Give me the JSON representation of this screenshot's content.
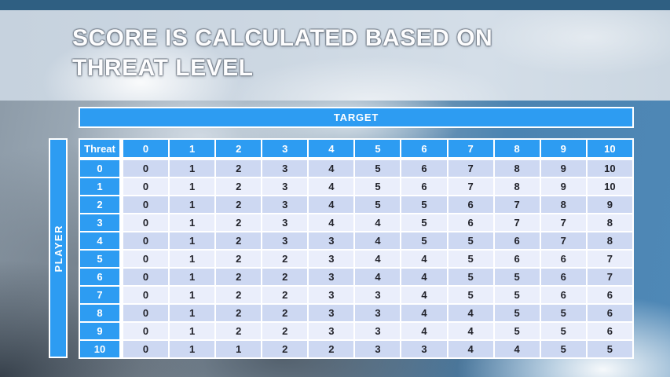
{
  "slide": {
    "title_line1": "SCORE IS CALCULATED BASED ON",
    "title_line2": "THREAT LEVEL"
  },
  "table": {
    "target_label": "TARGET",
    "player_label": "PLAYER",
    "corner_label": "Threat",
    "column_headers": [
      "0",
      "1",
      "2",
      "3",
      "4",
      "5",
      "6",
      "7",
      "8",
      "9",
      "10"
    ],
    "rows": [
      {
        "header": "0",
        "values": [
          0,
          1,
          2,
          3,
          4,
          5,
          6,
          7,
          8,
          9,
          10
        ]
      },
      {
        "header": "1",
        "values": [
          0,
          1,
          2,
          3,
          4,
          5,
          6,
          7,
          8,
          9,
          10
        ]
      },
      {
        "header": "2",
        "values": [
          0,
          1,
          2,
          3,
          4,
          5,
          5,
          6,
          7,
          8,
          9
        ]
      },
      {
        "header": "3",
        "values": [
          0,
          1,
          2,
          3,
          4,
          4,
          5,
          6,
          7,
          7,
          8
        ]
      },
      {
        "header": "4",
        "values": [
          0,
          1,
          2,
          3,
          3,
          4,
          5,
          5,
          6,
          7,
          8
        ]
      },
      {
        "header": "5",
        "values": [
          0,
          1,
          2,
          2,
          3,
          4,
          4,
          5,
          6,
          6,
          7
        ]
      },
      {
        "header": "6",
        "values": [
          0,
          1,
          2,
          2,
          3,
          4,
          4,
          5,
          5,
          6,
          7
        ]
      },
      {
        "header": "7",
        "values": [
          0,
          1,
          2,
          2,
          3,
          3,
          4,
          5,
          5,
          6,
          6
        ]
      },
      {
        "header": "8",
        "values": [
          0,
          1,
          2,
          2,
          3,
          3,
          4,
          4,
          5,
          5,
          6
        ]
      },
      {
        "header": "9",
        "values": [
          0,
          1,
          2,
          2,
          3,
          3,
          4,
          4,
          5,
          5,
          6
        ]
      },
      {
        "header": "10",
        "values": [
          0,
          1,
          1,
          2,
          2,
          3,
          3,
          4,
          4,
          5,
          5
        ]
      }
    ]
  },
  "colors": {
    "header_blue": "#2d9cf2",
    "row_dark": "#cdd8f2",
    "row_light": "#eaeefb",
    "cell_text": "#22232b",
    "top_strip": "#2f5f82",
    "grid_white": "#ffffff",
    "title_text": "#fdfdfe"
  }
}
